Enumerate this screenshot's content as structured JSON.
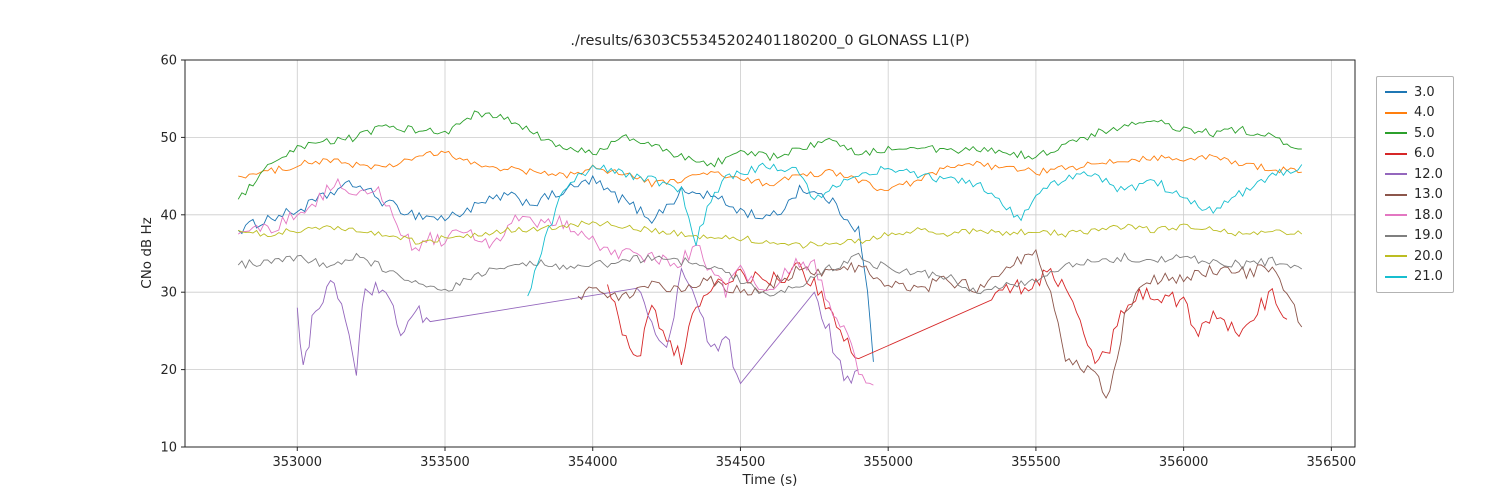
{
  "chart_data": {
    "type": "line",
    "title": "./results/6303C55345202401180200_0 GLONASS L1(P)",
    "xlabel": "Time (s)",
    "ylabel": "CNo dB Hz",
    "xlim": [
      352620,
      356580
    ],
    "ylim": [
      10,
      60
    ],
    "xticks": [
      353000,
      353500,
      354000,
      354500,
      355000,
      355500,
      356000,
      356500
    ],
    "yticks": [
      10,
      20,
      30,
      40,
      50,
      60
    ],
    "grid": true,
    "legend_position": "right-outside",
    "series": [
      {
        "name": "3.0",
        "color": "#1f77b4",
        "noise": 0.7,
        "x": [
          352800,
          352900,
          353000,
          353100,
          353150,
          353200,
          353300,
          353400,
          353500,
          353600,
          353700,
          353800,
          353900,
          354000,
          354050,
          354100,
          354200,
          354250,
          354300,
          354400,
          354500,
          354600,
          354650,
          354700,
          354800,
          354850,
          354900,
          354930,
          354950
        ],
        "y": [
          38,
          39.5,
          40.5,
          42.5,
          43.5,
          44,
          41.5,
          40,
          39.5,
          41,
          42.5,
          41.5,
          43,
          44.5,
          43,
          42,
          39.5,
          41,
          43,
          42.5,
          40.5,
          39.5,
          41,
          43.5,
          42,
          40,
          38,
          30,
          21
        ]
      },
      {
        "name": "4.0",
        "color": "#ff7f0e",
        "noise": 0.45,
        "x": [
          352800,
          352900,
          353000,
          353100,
          353200,
          353300,
          353400,
          353500,
          353600,
          353700,
          353800,
          353900,
          354000,
          354100,
          354200,
          354300,
          354400,
          354500,
          354600,
          354700,
          354800,
          354900,
          355000,
          355100,
          355200,
          355300,
          355400,
          355500,
          355600,
          355700,
          355800,
          355900,
          356000,
          356100,
          356200,
          356300,
          356400
        ],
        "y": [
          45,
          45.5,
          46.5,
          47,
          46.5,
          46,
          47.5,
          48,
          46.5,
          46,
          45.5,
          45,
          46,
          45.5,
          44,
          44.5,
          45.5,
          44.5,
          44,
          45,
          45.5,
          44.5,
          43,
          44.5,
          46,
          46.5,
          46,
          45.5,
          46,
          46.5,
          47,
          47.5,
          47,
          47.5,
          46.5,
          46,
          45.5
        ]
      },
      {
        "name": "5.0",
        "color": "#2ca02c",
        "noise": 0.5,
        "x": [
          352800,
          352900,
          353000,
          353100,
          353200,
          353300,
          353400,
          353500,
          353600,
          353700,
          353800,
          353900,
          354000,
          354100,
          354200,
          354300,
          354400,
          354500,
          354600,
          354700,
          354800,
          354900,
          355000,
          355100,
          355200,
          355300,
          355400,
          355500,
          355600,
          355700,
          355800,
          355900,
          356000,
          356100,
          356200,
          356300,
          356400
        ],
        "y": [
          42,
          46,
          48.5,
          49.5,
          50,
          51.5,
          51,
          50.5,
          53,
          52.5,
          50.5,
          48.5,
          48,
          50,
          49,
          47.5,
          46.5,
          48,
          47.5,
          48.5,
          49.5,
          48,
          48.5,
          49,
          48,
          48.5,
          48,
          47.5,
          49,
          50.5,
          51.5,
          52,
          51,
          50.5,
          51,
          50,
          48.5
        ]
      },
      {
        "name": "6.0",
        "color": "#d62728",
        "noise": 1.0,
        "x": [
          354050,
          354100,
          354150,
          354200,
          354250,
          354300,
          354350,
          354400,
          354500,
          354600,
          354700,
          354750,
          354800,
          354850,
          354900,
          355350,
          355400,
          355500,
          355550,
          355600,
          355650,
          355700,
          355750,
          355800,
          355850,
          355900,
          356000,
          356050,
          356100,
          356150,
          356200,
          356250,
          356300,
          356350
        ],
        "y": [
          31,
          25,
          21,
          28,
          24,
          21.5,
          28,
          31,
          32,
          31.5,
          33,
          31,
          28,
          24,
          21.5,
          29,
          30.5,
          31,
          33,
          30,
          26,
          20.5,
          23,
          28,
          29.5,
          30,
          28.5,
          25,
          27.5,
          25.5,
          24.5,
          28,
          29.5,
          26.5
        ]
      },
      {
        "name": "12.0",
        "color": "#9467bd",
        "noise": 1.2,
        "x": [
          353000,
          353020,
          353050,
          353100,
          353150,
          353200,
          353230,
          353300,
          353350,
          353400,
          353450,
          354150,
          354200,
          354250,
          354300,
          354350,
          354400,
          354450,
          354500,
          354750,
          354800,
          354850,
          354900
        ],
        "y": [
          28,
          19.5,
          26,
          31,
          29.5,
          19.5,
          31,
          30,
          25,
          28,
          26,
          30.5,
          26,
          22,
          33,
          29,
          22,
          25,
          18,
          30,
          25,
          18.5,
          20
        ]
      },
      {
        "name": "13.0",
        "color": "#8c564b",
        "noise": 0.8,
        "x": [
          353950,
          354000,
          354100,
          354200,
          354300,
          354400,
          354500,
          354600,
          354700,
          354800,
          354900,
          355000,
          355100,
          355200,
          355300,
          355400,
          355500,
          355550,
          355600,
          355650,
          355700,
          355750,
          355800,
          355850,
          355900,
          356000,
          356100,
          356200,
          356300,
          356350,
          356400
        ],
        "y": [
          29.5,
          30.5,
          29.5,
          31,
          30.5,
          31.5,
          30,
          31,
          33,
          32.5,
          33.5,
          31,
          30.5,
          31.5,
          30.5,
          33.5,
          35,
          30,
          21,
          20.5,
          19,
          16.5,
          27,
          30,
          31.5,
          32,
          33,
          32.5,
          33,
          30,
          25.5
        ]
      },
      {
        "name": "18.0",
        "color": "#e377c2",
        "noise": 0.9,
        "x": [
          352800,
          352900,
          353000,
          353100,
          353150,
          353200,
          353250,
          353300,
          353350,
          353400,
          353450,
          353500,
          353550,
          353600,
          353650,
          353700,
          353750,
          353800,
          353850,
          353900,
          353950,
          354000,
          354100,
          354200,
          354300,
          354350,
          354400,
          354450,
          354500,
          354550,
          354600,
          354650,
          354700,
          354750,
          354800,
          354850,
          354900,
          354950
        ],
        "y": [
          37.5,
          38,
          40,
          43,
          44,
          42.5,
          43.5,
          42,
          38,
          35.5,
          37,
          36.5,
          38.5,
          37.5,
          36,
          37.5,
          40,
          38.5,
          39.5,
          39,
          38,
          36.5,
          35,
          34.5,
          34,
          36,
          33,
          30,
          33.5,
          31,
          29.5,
          33,
          34,
          33.5,
          28,
          25,
          20,
          18
        ]
      },
      {
        "name": "19.0",
        "color": "#7f7f7f",
        "noise": 0.55,
        "x": [
          352800,
          352900,
          353000,
          353100,
          353200,
          353300,
          353400,
          353500,
          353600,
          353700,
          353800,
          353900,
          354000,
          354100,
          354200,
          354300,
          354400,
          354500,
          354600,
          354700,
          354800,
          354900,
          355000,
          355100,
          355200,
          355300,
          355400,
          355500,
          355600,
          355700,
          355800,
          355900,
          356000,
          356100,
          356200,
          356300,
          356400
        ],
        "y": [
          33.5,
          34,
          34.5,
          33.5,
          34.5,
          33,
          31,
          30,
          32,
          33.5,
          34,
          33,
          33.5,
          34,
          34.5,
          34,
          33.5,
          31.5,
          29.5,
          31,
          33,
          34.5,
          33,
          32.5,
          32,
          30,
          31,
          31.5,
          33.5,
          34,
          34.5,
          34,
          34.5,
          34,
          33.5,
          34,
          33
        ]
      },
      {
        "name": "20.0",
        "color": "#bcbd22",
        "noise": 0.4,
        "x": [
          352800,
          352900,
          353000,
          353100,
          353200,
          353300,
          353400,
          353500,
          353600,
          353700,
          353800,
          353900,
          354000,
          354100,
          354200,
          354300,
          354400,
          354500,
          354600,
          354700,
          354800,
          354900,
          355000,
          355100,
          355200,
          355300,
          355400,
          355500,
          355600,
          355700,
          355800,
          355900,
          356000,
          356100,
          356200,
          356300,
          356400
        ],
        "y": [
          38,
          37.5,
          38,
          38.5,
          38,
          37.5,
          36.5,
          37,
          37.5,
          38,
          38,
          38.5,
          39,
          38.5,
          38,
          37.5,
          37,
          37,
          36.5,
          36,
          36.5,
          36.5,
          37.5,
          38,
          37.5,
          38,
          37.5,
          38,
          37.5,
          38,
          38.5,
          38,
          38.5,
          38,
          37.5,
          38,
          37.5
        ]
      },
      {
        "name": "21.0",
        "color": "#17becf",
        "noise": 0.6,
        "x": [
          353780,
          353850,
          353900,
          353950,
          354000,
          354100,
          354200,
          354300,
          354350,
          354400,
          354450,
          354500,
          354600,
          354700,
          354750,
          354800,
          354900,
          355000,
          355100,
          355200,
          355300,
          355400,
          355450,
          355500,
          355600,
          355700,
          355750,
          355800,
          355900,
          356000,
          356100,
          356150,
          356200,
          356300,
          356400
        ],
        "y": [
          29.5,
          38,
          43,
          45,
          46,
          45.5,
          44.5,
          43,
          36.5,
          42,
          44.5,
          45.5,
          46.5,
          45.5,
          42,
          43.5,
          45,
          46,
          45,
          44.5,
          44,
          41,
          39.5,
          43,
          44.5,
          45.5,
          44,
          43,
          44.5,
          42,
          40.5,
          41.5,
          43,
          45,
          46.5
        ]
      }
    ]
  }
}
